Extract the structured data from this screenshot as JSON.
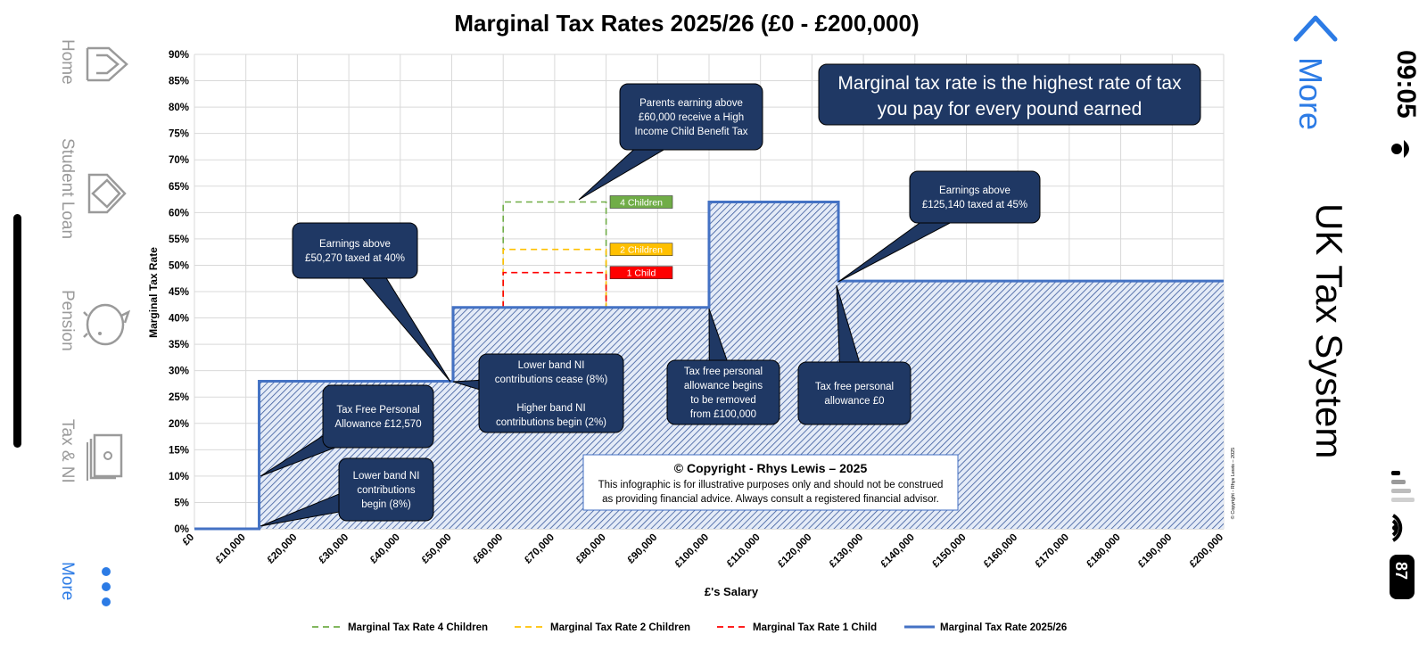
{
  "app": {
    "header_title": "UK Tax System",
    "more_link": "More"
  },
  "status_bar": {
    "time": "09:05",
    "battery": "87"
  },
  "tabs": [
    {
      "label": "Home",
      "icon": "home-icon"
    },
    {
      "label": "Student Loan",
      "icon": "graduation-cap-icon"
    },
    {
      "label": "Pension",
      "icon": "piggy-bank-icon"
    },
    {
      "label": "Tax & NI",
      "icon": "banknotes-icon"
    },
    {
      "label": "More",
      "icon": "more-dots-icon"
    }
  ],
  "colors": {
    "callout_fill": "#1f3864",
    "main_line": "#4472c4",
    "four_children": "#70ad47",
    "two_children": "#ffc000",
    "one_child": "#ff0000",
    "ios_blue": "#2c7be5"
  },
  "chart_data": {
    "type": "area",
    "title": "Marginal Tax Rates 2025/26 (£0 - £200,000)",
    "xlabel": "£'s Salary",
    "ylabel": "Marginal Tax Rate",
    "xlim": [
      0,
      200000
    ],
    "ylim": [
      0,
      0.9
    ],
    "x_ticks": [
      "£0",
      "£10,000",
      "£20,000",
      "£30,000",
      "£40,000",
      "£50,000",
      "£60,000",
      "£70,000",
      "£80,000",
      "£90,000",
      "£100,000",
      "£110,000",
      "£120,000",
      "£130,000",
      "£140,000",
      "£150,000",
      "£160,000",
      "£170,000",
      "£180,000",
      "£190,000",
      "£200,000"
    ],
    "y_ticks": [
      "0%",
      "5%",
      "10%",
      "15%",
      "20%",
      "25%",
      "30%",
      "35%",
      "40%",
      "45%",
      "50%",
      "55%",
      "60%",
      "65%",
      "70%",
      "75%",
      "80%",
      "85%",
      "90%"
    ],
    "grid": true,
    "legend_position": "bottom",
    "series": [
      {
        "name": "Marginal Tax Rate 4 Children",
        "style": "dashed",
        "color": "#70ad47",
        "points": [
          [
            60000,
            0.42
          ],
          [
            60000,
            0.62
          ],
          [
            80000,
            0.62
          ],
          [
            80000,
            0.42
          ]
        ]
      },
      {
        "name": "Marginal Tax Rate 2 Children",
        "style": "dashed",
        "color": "#ffc000",
        "points": [
          [
            60000,
            0.42
          ],
          [
            60000,
            0.53
          ],
          [
            80000,
            0.53
          ],
          [
            80000,
            0.42
          ]
        ]
      },
      {
        "name": "Marginal Tax Rate 1 Child",
        "style": "dashed",
        "color": "#ff0000",
        "points": [
          [
            60000,
            0.42
          ],
          [
            60000,
            0.486
          ],
          [
            80000,
            0.486
          ],
          [
            80000,
            0.42
          ]
        ]
      },
      {
        "name": "Marginal Tax Rate 2025/26",
        "style": "solid",
        "color": "#4472c4",
        "points": [
          [
            0,
            0
          ],
          [
            12570,
            0
          ],
          [
            12570,
            0.28
          ],
          [
            50270,
            0.28
          ],
          [
            50270,
            0.42
          ],
          [
            100000,
            0.42
          ],
          [
            100000,
            0.62
          ],
          [
            125140,
            0.62
          ],
          [
            125140,
            0.47
          ],
          [
            200000,
            0.47
          ]
        ]
      }
    ],
    "child_labels": [
      {
        "text": "4 Children",
        "color": "#70ad47",
        "y": 0.62
      },
      {
        "text": "2 Children",
        "color": "#ffc000",
        "y": 0.53
      },
      {
        "text": "1 Child",
        "color": "#ff0000",
        "y": 0.486
      }
    ],
    "annotations": [
      {
        "lines": [
          "Parents earning above",
          "£60,000 receive a High",
          "Income Child Benefit Tax"
        ]
      },
      {
        "lines": [
          "Earnings above",
          "£50,270 taxed at 40%"
        ]
      },
      {
        "lines": [
          "Earnings above",
          "£125,140 taxed at 45%"
        ]
      },
      {
        "lines": [
          "Tax Free Personal",
          "Allowance £12,570"
        ]
      },
      {
        "lines": [
          "Lower band NI",
          "contributions",
          "begin (8%)"
        ]
      },
      {
        "lines": [
          "Lower band NI",
          "contributions cease (8%)",
          "",
          "Higher band NI",
          "contributions begin (2%)"
        ]
      },
      {
        "lines": [
          "Tax free personal",
          "allowance begins",
          "to be removed",
          "from £100,000"
        ]
      },
      {
        "lines": [
          "Tax free personal",
          "allowance £0"
        ]
      }
    ],
    "info_box": {
      "lines": [
        "Marginal tax rate is the highest rate of tax",
        "you pay for every pound earned"
      ]
    },
    "copyright": {
      "title": "© Copyright - Rhys Lewis – 2025",
      "lines": [
        "This infographic is for illustrative purposes only and should not be construed",
        "as providing financial advice.  Always consult a registered financial advisor."
      ]
    },
    "side_copyright": "© Copyright - Rhys Lewis – 2025"
  }
}
